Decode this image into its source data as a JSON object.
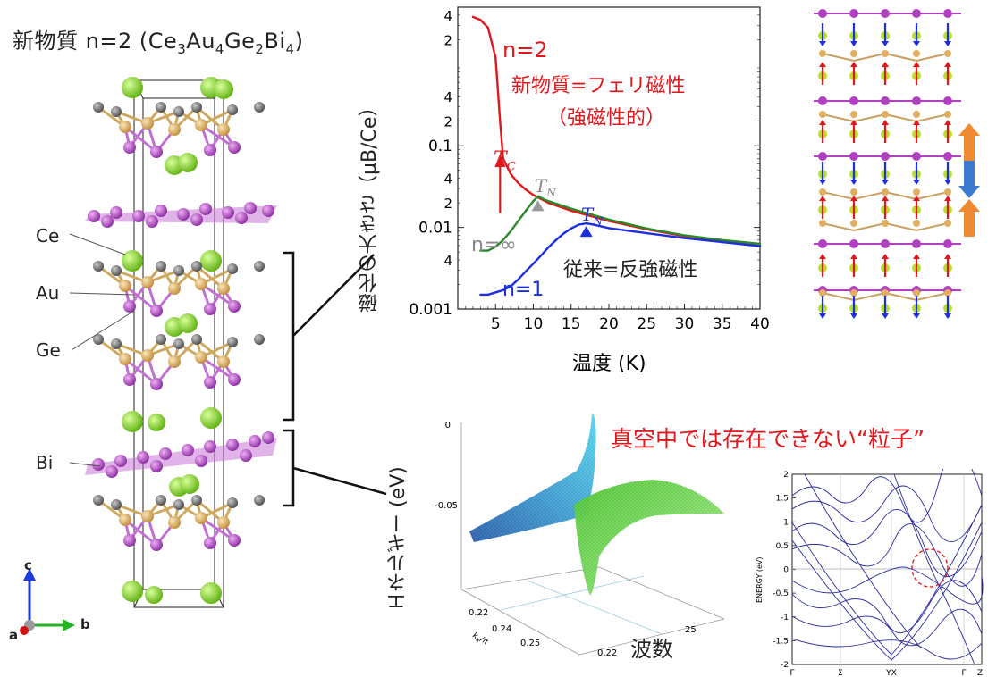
{
  "left_panel": {
    "title_main": "新物質 n=2 (Ce",
    "title_sub1": "3",
    "title_au": "Au",
    "title_sub2": "4",
    "title_ge": "Ge",
    "title_sub3": "2",
    "title_bi": "Bi",
    "title_sub4": "4",
    "title_close": ")",
    "element_labels": [
      "Ce",
      "Au",
      "Ge",
      "Bi"
    ],
    "axis_labels": {
      "c": "c",
      "a": "a",
      "b": "b"
    },
    "colors": {
      "ce": "#7ed321",
      "au": "#e0b060",
      "ge": "#707070",
      "bi": "#b040c0"
    }
  },
  "magnetization_chart": {
    "chart_data": {
      "type": "line",
      "xlabel": "温度 (K)",
      "ylabel": "磁化の大きさ（μB/Ce）",
      "xlim": [
        0,
        40
      ],
      "ylim": [
        0.001,
        5
      ],
      "yscale": "log",
      "xticks": [
        "5",
        "10",
        "15",
        "20",
        "25",
        "30",
        "35",
        "40"
      ],
      "yticks": [
        "0.001",
        "0.01",
        "0.1"
      ],
      "minor_tick_labels": [
        "4",
        "2",
        "4",
        "2",
        "4",
        "2",
        "4"
      ],
      "series": [
        {
          "name": "n=2",
          "color": "#e0181c",
          "x": [
            2,
            3,
            4,
            5,
            5.6,
            6,
            7,
            8,
            9,
            10,
            12,
            15,
            20,
            25,
            30,
            35,
            40
          ],
          "y": [
            3.8,
            3.5,
            2.8,
            1.2,
            0.2,
            0.07,
            0.045,
            0.035,
            0.029,
            0.025,
            0.02,
            0.016,
            0.012,
            0.0095,
            0.0078,
            0.0068,
            0.006
          ]
        },
        {
          "name": "n=∞",
          "color": "#2a8a2a",
          "x": [
            3,
            4,
            5,
            6,
            7,
            8,
            9,
            10,
            10.6,
            11,
            12,
            15,
            20,
            25,
            30,
            35,
            40
          ],
          "y": [
            0.0052,
            0.0052,
            0.0058,
            0.007,
            0.009,
            0.012,
            0.016,
            0.021,
            0.024,
            0.023,
            0.021,
            0.017,
            0.0125,
            0.0097,
            0.008,
            0.007,
            0.0063
          ]
        },
        {
          "name": "n=1",
          "color": "#1c2ee0",
          "x": [
            3,
            4,
            5,
            6,
            7,
            8,
            9,
            10,
            11,
            12,
            13,
            14,
            15,
            16,
            17,
            18,
            20,
            25,
            30,
            35,
            40
          ],
          "y": [
            0.0015,
            0.0015,
            0.0016,
            0.0017,
            0.0019,
            0.0023,
            0.0029,
            0.0036,
            0.0045,
            0.0057,
            0.007,
            0.0084,
            0.0097,
            0.0108,
            0.0112,
            0.0108,
            0.0098,
            0.0085,
            0.0074,
            0.0066,
            0.0059
          ]
        }
      ]
    },
    "label_n2": "n=2",
    "label_ninf": "n=∞",
    "label_n1": "n=1",
    "annot_ferri": "新物質=フェリ磁性",
    "annot_ferro": "（強磁性的）",
    "annot_conventional": "従来=反強磁性",
    "tc_label": "T",
    "tc_sub": "C",
    "tn_label": "T",
    "tn_sub": "N",
    "tc_x": 5.6,
    "tn_green_x": 10.6,
    "tn_blue_x": 17
  },
  "energy_chart": {
    "ylabel": "エネルギー (eV)",
    "xlabel": "波数",
    "annotation": "真空中では存在できない“粒子”",
    "zticks": [
      "0",
      "-0.05"
    ],
    "kx_label": "k",
    "kx_sub": "x",
    "kx_unit": "/π",
    "kx_ticks": [
      "0.22",
      "0.24",
      "0.25"
    ],
    "ky_ticks": [
      "0.22",
      "25"
    ]
  },
  "band_chart": {
    "ylabel": "ENERGY (eV)",
    "yticks": [
      "2",
      "1.5",
      "1",
      "0.5",
      "0",
      "-0.5",
      "-1",
      "-1.5",
      "-2"
    ],
    "xticks": [
      "Γ",
      "Σ",
      "YX",
      "Γ",
      "Z"
    ]
  }
}
